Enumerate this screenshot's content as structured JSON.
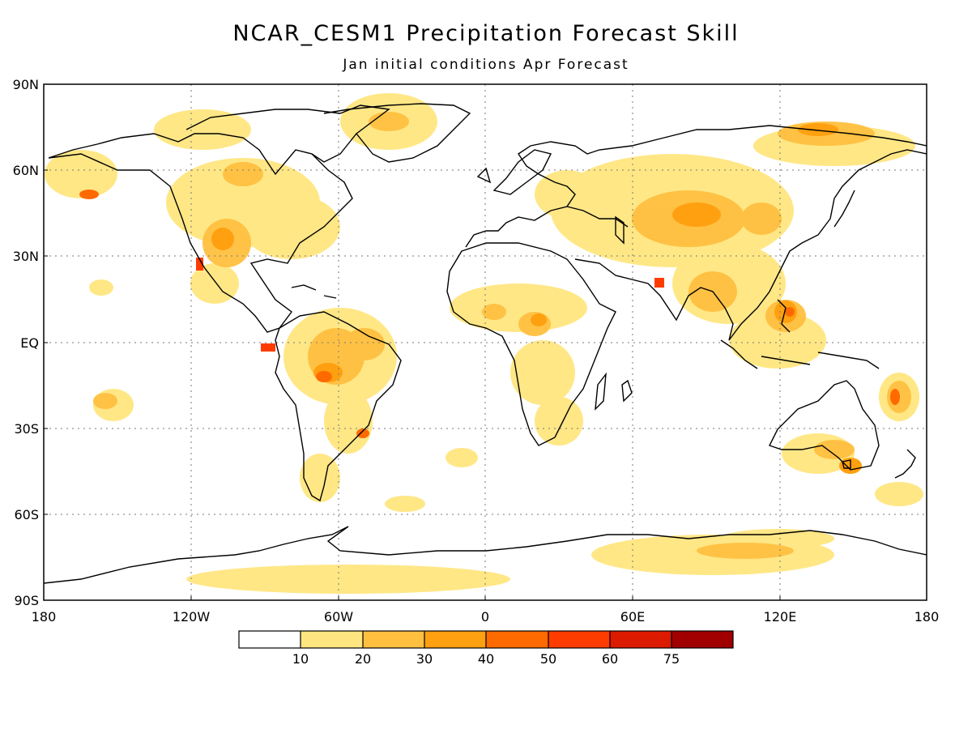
{
  "title": "NCAR_CESM1 Precipitation Forecast Skill",
  "subtitle": "Jan initial conditions  Apr Forecast",
  "map": {
    "lat_ticks": [
      "90N",
      "60N",
      "30N",
      "EQ",
      "30S",
      "60S",
      "90S"
    ],
    "lon_ticks": [
      "180",
      "120W",
      "60W",
      "0",
      "60E",
      "120E",
      "180"
    ],
    "grid": true
  },
  "colorbar": {
    "colors": [
      "#ffffff",
      "#ffe680",
      "#ffc040",
      "#ffa010",
      "#ff6a00",
      "#ff3c00",
      "#dc1a00",
      "#a00000"
    ],
    "labels": [
      "10",
      "20",
      "30",
      "40",
      "50",
      "60",
      "75"
    ]
  }
}
